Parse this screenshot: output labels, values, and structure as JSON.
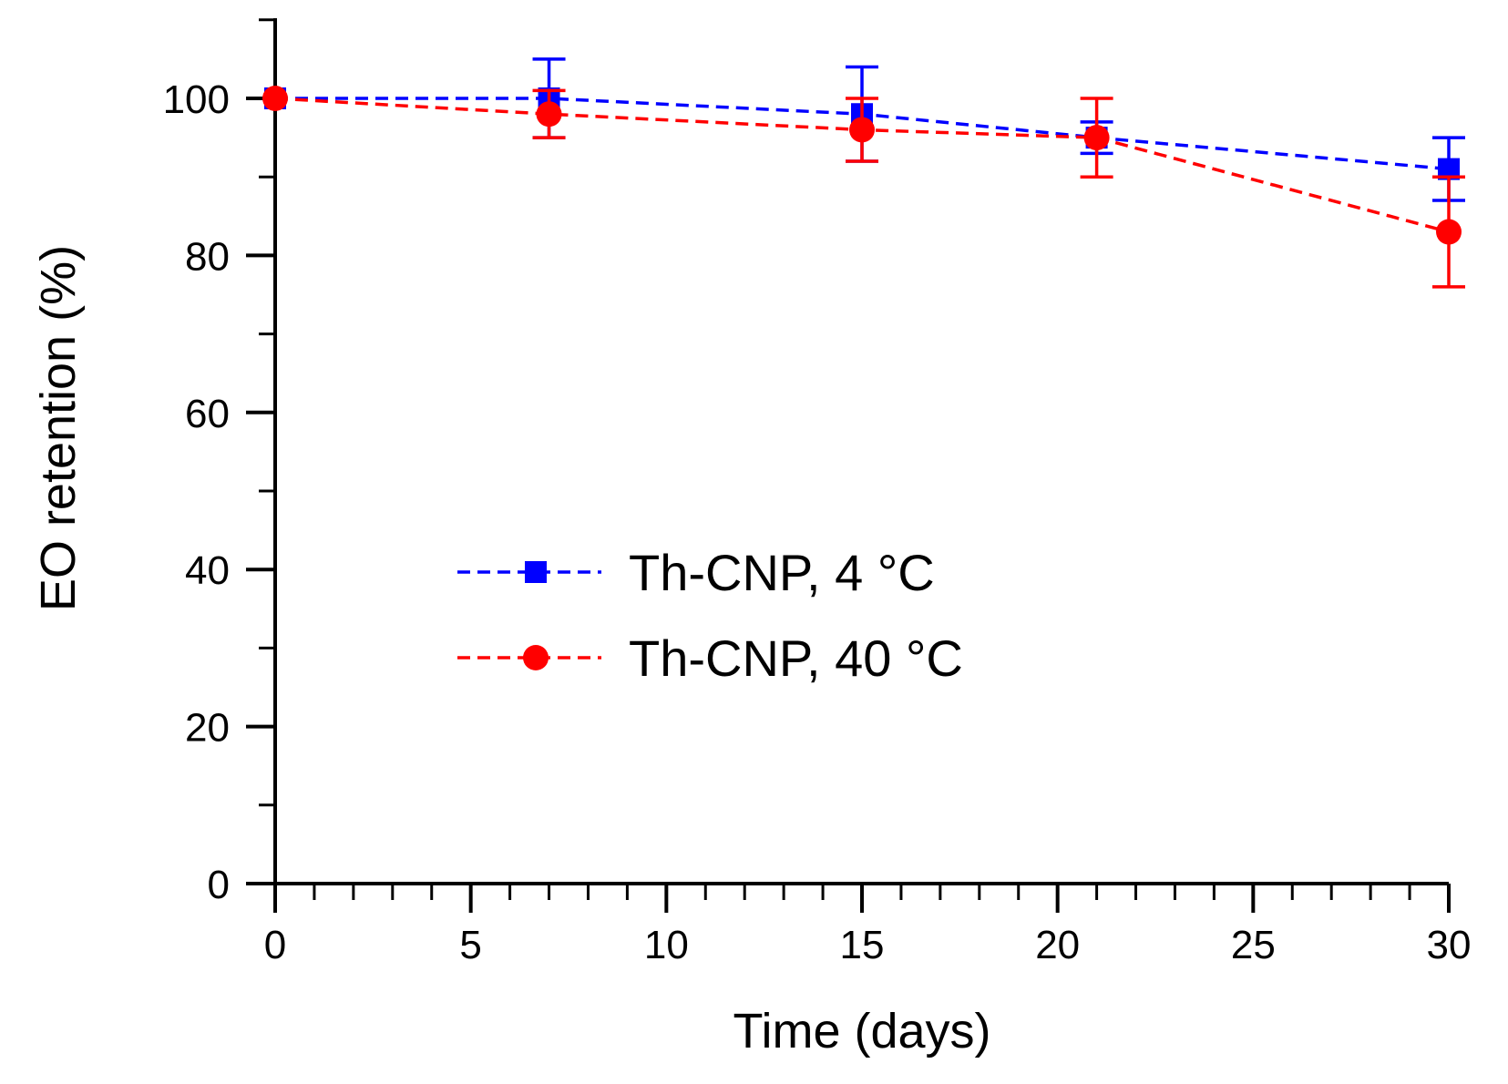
{
  "chart_data": {
    "type": "line",
    "title": "",
    "xlabel": "Time (days)",
    "ylabel": "EO retention (%)",
    "xlim": [
      0,
      30
    ],
    "ylim": [
      0,
      110
    ],
    "xticks": [
      0,
      5,
      10,
      15,
      20,
      25,
      30
    ],
    "xtick_labels": [
      "0",
      "5",
      "10",
      "15",
      "20",
      "25",
      "30"
    ],
    "xminor_step": 1,
    "yticks": [
      0,
      20,
      40,
      60,
      80,
      100
    ],
    "ytick_labels": [
      "0",
      "20",
      "40",
      "60",
      "80",
      "100"
    ],
    "yminor_step": 10,
    "grid": false,
    "legend_position": "center-left",
    "series": [
      {
        "name": "Th-CNP, 4 °C",
        "color": "#0000ff",
        "marker": "square",
        "line_style": "dashed",
        "x": [
          0,
          7,
          15,
          21,
          30
        ],
        "y": [
          100,
          100,
          98,
          95,
          91
        ],
        "error": [
          0,
          5,
          6,
          2,
          4
        ]
      },
      {
        "name": "Th-CNP, 40 °C",
        "color": "#ff0000",
        "marker": "circle",
        "line_style": "dashed",
        "x": [
          0,
          7,
          15,
          21,
          30
        ],
        "y": [
          100,
          98,
          96,
          95,
          83
        ],
        "error": [
          0,
          3,
          4,
          5,
          7
        ]
      }
    ]
  }
}
